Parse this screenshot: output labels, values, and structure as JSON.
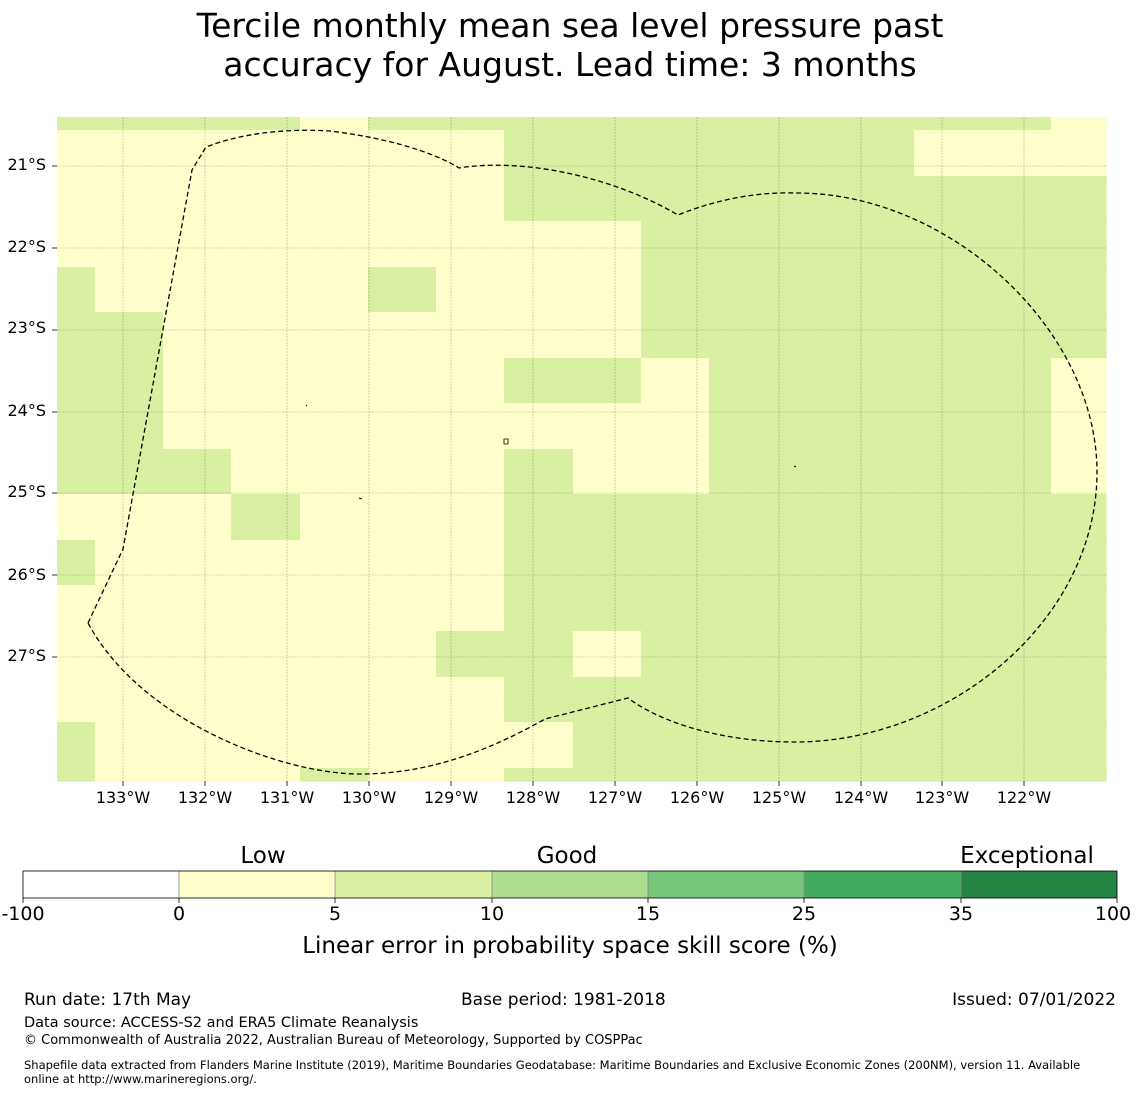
{
  "title": {
    "line1": "Tercile monthly mean sea level pressure past",
    "line2": "accuracy for August. Lead time: 3 months"
  },
  "map": {
    "lat_labels": [
      "21°S",
      "22°S",
      "23°S",
      "24°S",
      "25°S",
      "26°S",
      "27°S"
    ],
    "lon_labels": [
      "133°W",
      "132°W",
      "131°W",
      "130°W",
      "129°W",
      "128°W",
      "127°W",
      "126°W",
      "125°W",
      "124°W",
      "123°W",
      "122°W"
    ],
    "category_colors": {
      "0-5": "#ffffcc",
      "5-10": "#d9f0a3"
    },
    "boundary_style": "dashed",
    "gridlines": true
  },
  "colorbar": {
    "categories": [
      "Low",
      "Good",
      "Exceptional"
    ],
    "ticks": [
      "-100",
      "0",
      "5",
      "10",
      "15",
      "25",
      "35",
      "100"
    ],
    "colors": [
      "#ffffff",
      "#ffffcc",
      "#d9f0a3",
      "#addd8e",
      "#78c679",
      "#41ab5d",
      "#238443"
    ],
    "title": "Linear error in probability space skill score (%)"
  },
  "footer": {
    "run_date": "Run date: 17th May",
    "base_period": "Base period: 1981-2018",
    "issued": "Issued: 07/01/2022",
    "data_source": "Data source: ACCESS-S2 and ERA5 Climate Reanalysis",
    "copyright": "© Commonwealth of Australia 2022, Australian Bureau of Meteorology, Supported by COSPPac",
    "shapefile_line1": "Shapefile data extracted from Flanders Marine Institute (2019), Maritime Boundaries Geodatabase: Maritime Boundaries and Exclusive Economic Zones (200NM), version 11. Available",
    "shapefile_line2": "online at http://www.marineregions.org/."
  }
}
